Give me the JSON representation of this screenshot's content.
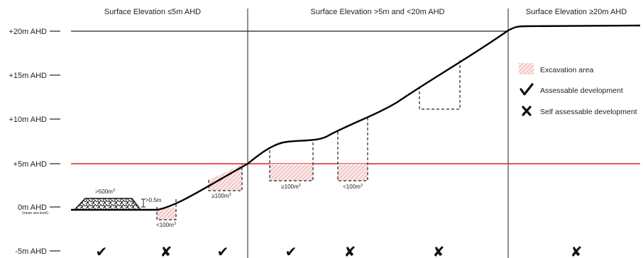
{
  "zones": [
    {
      "label": "Surface Elevation ≤5m AHD"
    },
    {
      "label": "Surface Elevation >5m and <20m AHD"
    },
    {
      "label": "Surface  Elevation ≥20m AHD"
    }
  ],
  "elevations": [
    {
      "label": "+20m AHD"
    },
    {
      "label": "+15m AHD"
    },
    {
      "label": "+10m AHD"
    },
    {
      "label": "+5m AHD"
    },
    {
      "label": "0m AHD",
      "sublabel": "(mean sea level)"
    },
    {
      "label": "-5m AHD"
    }
  ],
  "reference_line": {
    "level": "+5m AHD",
    "color": "#e02020"
  },
  "fill": {
    "label": ">500m",
    "sup": "3"
  },
  "fill_height": {
    "label": ">0.5m"
  },
  "excavations": [
    {
      "label": "<100m",
      "sup": "3"
    },
    {
      "label": "≥100m",
      "sup": "3"
    },
    {
      "label": "≥100m",
      "sup": "3"
    },
    {
      "label": "<100m",
      "sup": "3"
    }
  ],
  "legend": [
    {
      "label": "Excavation area",
      "icon": "hatch-swatch"
    },
    {
      "label": "Assessable development",
      "icon": "check-mark"
    },
    {
      "label": "Self assessable development",
      "icon": "cross-mark"
    }
  ],
  "assessments": [
    "✔",
    "✘",
    "✔",
    "✔",
    "✘",
    "✘",
    "✘"
  ],
  "colors": {
    "excavation_hatch": "#e8a0a0",
    "reference": "#e02020",
    "terrain": "#000000"
  }
}
